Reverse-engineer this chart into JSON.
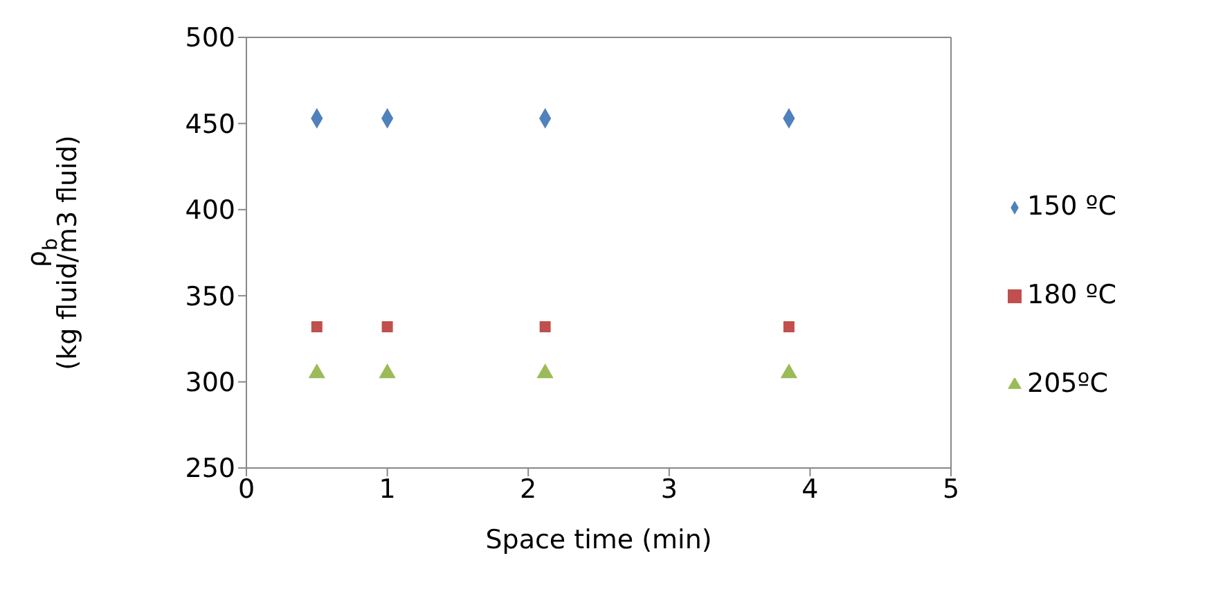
{
  "chart_data": {
    "type": "scatter",
    "xlabel": "Space time (min)",
    "ylabel": "ρ$_{b}$\n(kg fluid/m3 fluid)",
    "x": [
      0.5,
      1,
      2.12,
      3.85
    ],
    "series": [
      {
        "name": "150 ºC",
        "color": "#4f81bd",
        "marker": "diamond",
        "values": [
          453,
          453,
          453,
          453
        ]
      },
      {
        "name": "180 ºC",
        "color": "#c0504d",
        "marker": "square",
        "values": [
          332,
          332,
          332,
          332
        ]
      },
      {
        "name": "205ºC",
        "color": "#9bbb59",
        "marker": "triangle",
        "values": [
          305,
          305,
          305,
          305
        ]
      }
    ],
    "xlim": [
      0,
      5
    ],
    "xticks": [
      0,
      1,
      2,
      3,
      4,
      5
    ],
    "ylim": [
      250,
      500
    ],
    "yticks": [
      250,
      300,
      350,
      400,
      450,
      500
    ],
    "grid": false,
    "legend": "right"
  }
}
